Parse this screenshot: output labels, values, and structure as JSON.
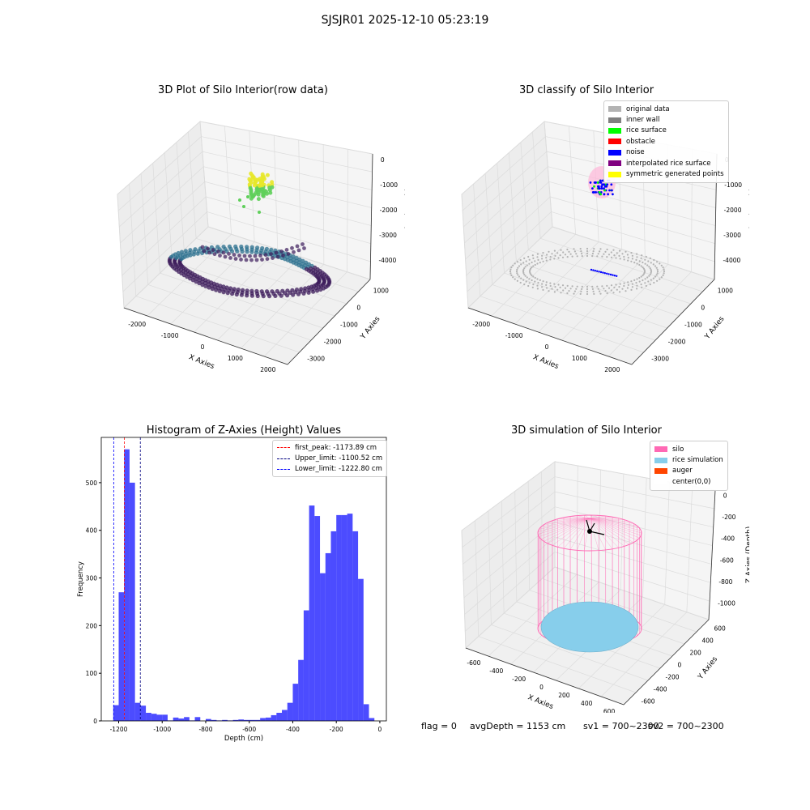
{
  "figure": {
    "title": "SJSJR01 2025-12-10 05:23:19"
  },
  "panels": {
    "raw": {
      "title": "3D Plot of Silo Interior(row data)",
      "xlabel": "X Axies",
      "ylabel": "Y Axies",
      "zlabel": "Z Axies (Depth)",
      "xticks": [
        "-2000",
        "-1000",
        "0",
        "1000",
        "2000"
      ],
      "yticks": [
        "1000",
        "0",
        "-1000",
        "-2000",
        "-3000"
      ],
      "zticks": [
        "0",
        "-1000",
        "-2000",
        "-3000",
        "-4000"
      ],
      "colors": {
        "top": "#e8e82a",
        "mid": "#5fcf5a",
        "floor_dark": "#3b1a5a",
        "floor_light": "#2a6f8e"
      }
    },
    "classify": {
      "title": "3D classify of Silo Interior",
      "xlabel": "X Axies",
      "ylabel": "Y Axies",
      "zlabel": "Z Axies (Depth)",
      "xticks": [
        "-2000",
        "-1000",
        "0",
        "1000",
        "2000"
      ],
      "yticks": [
        "1000",
        "0",
        "-1000",
        "-2000",
        "-3000"
      ],
      "zticks": [
        "0",
        "-1000",
        "-2000",
        "-3000",
        "-4000"
      ],
      "legend": [
        {
          "label": "original data",
          "color": "#b3b3b3"
        },
        {
          "label": "inner wall",
          "color": "#808080"
        },
        {
          "label": "rice surface",
          "color": "#00ff00"
        },
        {
          "label": "obstacle",
          "color": "#ff0000"
        },
        {
          "label": "noise",
          "color": "#0000ff"
        },
        {
          "label": "interpolated rice surface",
          "color": "#800080"
        },
        {
          "label": "symmetric generated points",
          "color": "#ffff00"
        }
      ]
    },
    "sim": {
      "title": "3D simulation of Silo Interior",
      "xlabel": "X Axies",
      "ylabel": "Y Axies",
      "zlabel": "Z Axies (Depth)",
      "xticks": [
        "-600",
        "-400",
        "-200",
        "0",
        "200",
        "400",
        "600"
      ],
      "yticks": [
        "600",
        "400",
        "200",
        "0",
        "-200",
        "-400",
        "-600"
      ],
      "zticks": [
        "0",
        "-200",
        "-400",
        "-600",
        "-800",
        "-1000"
      ],
      "legend": [
        {
          "label": "silo",
          "color": "#ff69b4"
        },
        {
          "label": "rice simulation",
          "color": "#87ceeb"
        },
        {
          "label": "auger",
          "color": "#ff4500"
        },
        {
          "label": "center(0,0)",
          "color": "#ffffff"
        }
      ]
    },
    "footer": {
      "flag": "flag = 0",
      "avg": "avgDepth = 1153 cm",
      "sv1": "sv1 = 700~2300",
      "sv2": "sv2 = 700~2300"
    }
  },
  "chart_data": [
    {
      "type": "bar",
      "title": "Histogram of Z-Axies (Height) Values",
      "xlabel": "Depth (cm)",
      "ylabel": "Frequency",
      "xlim": [
        -1280,
        30
      ],
      "ylim": [
        0,
        595
      ],
      "xticks": [
        -1200,
        -1000,
        -800,
        -600,
        -400,
        -200,
        0
      ],
      "yticks": [
        0,
        100,
        200,
        300,
        400,
        500
      ],
      "bin_width": 25,
      "bin_starts": [
        -1225,
        -1200,
        -1175,
        -1150,
        -1125,
        -1100,
        -1075,
        -1050,
        -1025,
        -1000,
        -975,
        -950,
        -925,
        -900,
        -875,
        -850,
        -825,
        -800,
        -775,
        -750,
        -725,
        -700,
        -675,
        -650,
        -625,
        -600,
        -575,
        -550,
        -525,
        -500,
        -475,
        -450,
        -425,
        -400,
        -375,
        -350,
        -325,
        -300,
        -275,
        -250,
        -225,
        -200,
        -175,
        -150,
        -125,
        -100,
        -75,
        -50,
        -25,
        0
      ],
      "values": [
        33,
        270,
        570,
        500,
        38,
        32,
        17,
        15,
        13,
        13,
        1,
        7,
        5,
        8,
        1,
        8,
        0,
        4,
        2,
        1,
        2,
        1,
        2,
        3,
        2,
        2,
        2,
        6,
        7,
        12,
        17,
        23,
        38,
        78,
        128,
        232,
        452,
        430,
        310,
        352,
        398,
        432,
        432,
        435,
        398,
        298,
        35,
        6,
        0,
        0
      ],
      "bar_color": "#0000ff",
      "bar_opacity": 0.7,
      "vlines": [
        {
          "label": "first_peak: -1173.89 cm",
          "value": -1173.89,
          "color": "#ff0000"
        },
        {
          "label": "Upper_limit: -1100.52 cm",
          "value": -1100.52,
          "color": "#000080"
        },
        {
          "label": "Lower_limit: -1222.80 cm",
          "value": -1222.8,
          "color": "#0000ff"
        }
      ]
    }
  ]
}
